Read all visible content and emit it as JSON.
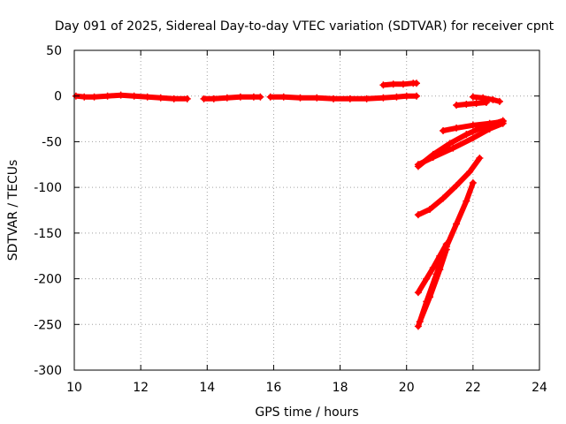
{
  "chart_data": {
    "type": "scatter",
    "title": "Day 091 of 2025, Sidereal Day-to-day VTEC variation (SDTVAR) for receiver cpnt",
    "xlabel": "GPS time / hours",
    "ylabel": "SDTVAR / TECUs",
    "xlim": [
      10,
      24
    ],
    "ylim": [
      -300,
      50
    ],
    "xticks": [
      "10",
      "12",
      "14",
      "16",
      "18",
      "20",
      "22",
      "24"
    ],
    "yticks": [
      "50",
      "0",
      "-50",
      "-100",
      "-150",
      "-200",
      "-250",
      "-300"
    ],
    "grid": true,
    "legend": "none",
    "marker": "+",
    "color": "#ff0000",
    "series": [
      {
        "x": [
          10.05,
          10.3,
          10.6,
          11.0,
          11.4,
          11.8,
          12.2,
          12.6,
          13.0,
          13.4
        ],
        "y": [
          0,
          -1,
          -1,
          0,
          1,
          0,
          -1,
          -2,
          -3,
          -3
        ]
      },
      {
        "x": [
          13.9,
          14.2,
          14.6,
          15.0,
          15.4,
          15.6
        ],
        "y": [
          -3,
          -3,
          -2,
          -1,
          -1,
          -1
        ]
      },
      {
        "x": [
          15.9,
          16.3,
          16.8,
          17.3,
          17.8,
          18.3,
          18.8,
          19.3,
          19.7,
          20.0,
          20.3
        ],
        "y": [
          -1,
          -1,
          -2,
          -2,
          -3,
          -3,
          -3,
          -2,
          -1,
          0,
          0
        ]
      },
      {
        "x": [
          19.3,
          19.6,
          19.9,
          20.2,
          20.3
        ],
        "y": [
          12,
          13,
          13,
          14,
          14
        ]
      },
      {
        "x": [
          21.5,
          21.8,
          22.1,
          22.4
        ],
        "y": [
          -10,
          -9,
          -8,
          -7
        ]
      },
      {
        "x": [
          22.0,
          22.3,
          22.6,
          22.8
        ],
        "y": [
          -1,
          -2,
          -4,
          -6
        ]
      },
      {
        "x": [
          21.1,
          21.5,
          22.0,
          22.5,
          22.9
        ],
        "y": [
          -38,
          -35,
          -32,
          -30,
          -28
        ]
      },
      {
        "x": [
          20.35,
          20.8,
          21.4,
          22.0,
          22.5,
          22.9
        ],
        "y": [
          -75,
          -67,
          -57,
          -46,
          -36,
          -30
        ]
      },
      {
        "x": [
          20.35,
          20.8,
          21.3,
          21.8,
          22.3,
          22.9
        ],
        "y": [
          -77,
          -64,
          -52,
          -42,
          -34,
          -27
        ]
      },
      {
        "x": [
          20.35,
          20.7,
          21.1,
          21.5,
          21.9,
          22.2
        ],
        "y": [
          -130,
          -124,
          -112,
          -98,
          -83,
          -68
        ]
      },
      {
        "x": [
          20.35,
          20.6,
          20.8,
          21.0,
          21.2
        ],
        "y": [
          -215,
          -200,
          -188,
          -175,
          -162
        ]
      },
      {
        "x": [
          20.35,
          20.6,
          20.9,
          21.2,
          21.5,
          21.8,
          22.0
        ],
        "y": [
          -252,
          -225,
          -195,
          -165,
          -140,
          -115,
          -95
        ]
      },
      {
        "x": [
          20.4,
          20.7,
          21.0,
          21.2
        ],
        "y": [
          -247,
          -220,
          -190,
          -168
        ]
      }
    ]
  }
}
